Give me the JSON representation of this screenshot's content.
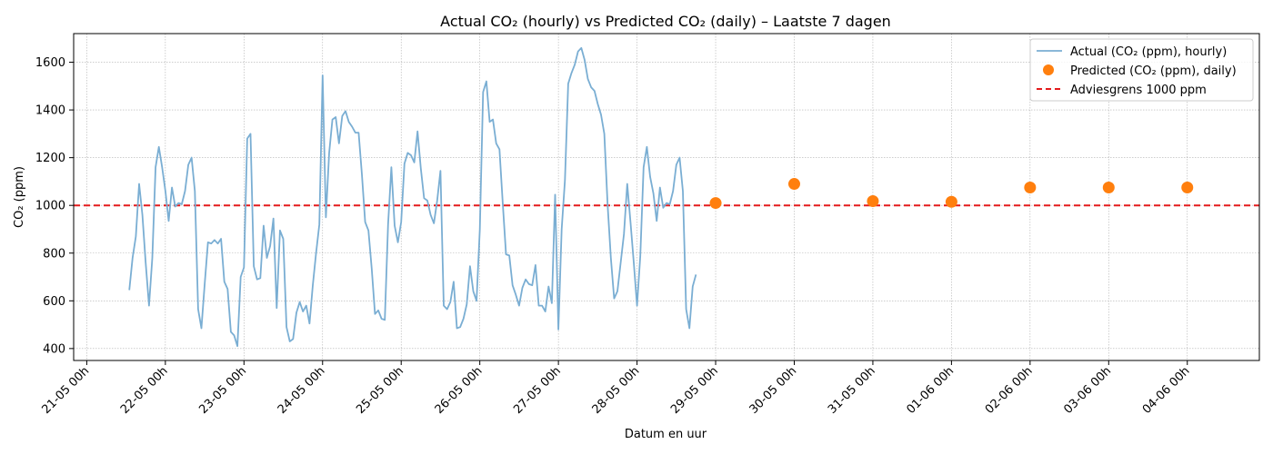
{
  "chart_data": {
    "type": "line",
    "title": "Actual CO₂ (hourly) vs Predicted CO₂ (daily) – Laatste 7 dagen",
    "xlabel": "Datum en uur",
    "ylabel": "CO₂ (ppm)",
    "x_unit": "hours since 21-05 00h",
    "xlim": [
      -4,
      358
    ],
    "ylim": [
      350,
      1720
    ],
    "grid": true,
    "legend_position": "top-right",
    "x_tick_labels": [
      "21-05 00h",
      "22-05 00h",
      "23-05 00h",
      "24-05 00h",
      "25-05 00h",
      "26-05 00h",
      "27-05 00h",
      "28-05 00h",
      "29-05 00h",
      "30-05 00h",
      "31-05 00h",
      "01-06 00h",
      "02-06 00h",
      "03-06 00h",
      "04-06 00h"
    ],
    "y_ticks": [
      400,
      600,
      800,
      1000,
      1200,
      1400,
      1600
    ],
    "series": [
      {
        "name": "Actual (CO₂ (ppm), hourly)",
        "kind": "line",
        "color": "#7aaed3",
        "points": [
          [
            13,
            645
          ],
          [
            14,
            780
          ],
          [
            15,
            870
          ],
          [
            16,
            1090
          ],
          [
            17,
            960
          ],
          [
            18,
            760
          ],
          [
            19,
            580
          ],
          [
            20,
            780
          ],
          [
            21,
            1160
          ],
          [
            22,
            1245
          ],
          [
            23,
            1160
          ],
          [
            24,
            1060
          ],
          [
            25,
            935
          ],
          [
            26,
            1075
          ],
          [
            27,
            995
          ],
          [
            28,
            1010
          ],
          [
            29,
            1005
          ],
          [
            30,
            1060
          ],
          [
            31,
            1170
          ],
          [
            32,
            1200
          ],
          [
            33,
            1060
          ],
          [
            34,
            565
          ],
          [
            35,
            485
          ],
          [
            36,
            670
          ],
          [
            37,
            845
          ],
          [
            38,
            840
          ],
          [
            39,
            855
          ],
          [
            40,
            840
          ],
          [
            41,
            860
          ],
          [
            42,
            680
          ],
          [
            43,
            650
          ],
          [
            44,
            470
          ],
          [
            45,
            455
          ],
          [
            46,
            410
          ],
          [
            47,
            700
          ],
          [
            48,
            740
          ],
          [
            49,
            1280
          ],
          [
            50,
            1300
          ],
          [
            51,
            745
          ],
          [
            52,
            690
          ],
          [
            53,
            695
          ],
          [
            54,
            915
          ],
          [
            55,
            780
          ],
          [
            56,
            830
          ],
          [
            57,
            945
          ],
          [
            58,
            570
          ],
          [
            59,
            895
          ],
          [
            60,
            860
          ],
          [
            61,
            490
          ],
          [
            62,
            430
          ],
          [
            63,
            440
          ],
          [
            64,
            550
          ],
          [
            65,
            595
          ],
          [
            66,
            555
          ],
          [
            67,
            580
          ],
          [
            68,
            505
          ],
          [
            69,
            665
          ],
          [
            70,
            800
          ],
          [
            71,
            920
          ],
          [
            72,
            1545
          ],
          [
            73,
            950
          ],
          [
            74,
            1220
          ],
          [
            75,
            1360
          ],
          [
            76,
            1370
          ],
          [
            77,
            1260
          ],
          [
            78,
            1375
          ],
          [
            79,
            1395
          ],
          [
            80,
            1350
          ],
          [
            81,
            1330
          ],
          [
            82,
            1305
          ],
          [
            83,
            1305
          ],
          [
            84,
            1130
          ],
          [
            85,
            930
          ],
          [
            86,
            895
          ],
          [
            87,
            735
          ],
          [
            88,
            545
          ],
          [
            89,
            560
          ],
          [
            90,
            525
          ],
          [
            91,
            520
          ],
          [
            92,
            920
          ],
          [
            93,
            1160
          ],
          [
            94,
            915
          ],
          [
            95,
            845
          ],
          [
            96,
            930
          ],
          [
            97,
            1175
          ],
          [
            98,
            1220
          ],
          [
            99,
            1210
          ],
          [
            100,
            1180
          ],
          [
            101,
            1310
          ],
          [
            102,
            1155
          ],
          [
            103,
            1030
          ],
          [
            104,
            1020
          ],
          [
            105,
            960
          ],
          [
            106,
            925
          ],
          [
            107,
            1020
          ],
          [
            108,
            1145
          ],
          [
            109,
            580
          ],
          [
            110,
            565
          ],
          [
            111,
            595
          ],
          [
            112,
            680
          ],
          [
            113,
            485
          ],
          [
            114,
            490
          ],
          [
            115,
            525
          ],
          [
            116,
            585
          ],
          [
            117,
            745
          ],
          [
            118,
            640
          ],
          [
            119,
            600
          ],
          [
            120,
            900
          ],
          [
            121,
            1475
          ],
          [
            122,
            1520
          ],
          [
            123,
            1350
          ],
          [
            124,
            1360
          ],
          [
            125,
            1260
          ],
          [
            126,
            1235
          ],
          [
            127,
            1010
          ],
          [
            128,
            795
          ],
          [
            129,
            790
          ],
          [
            130,
            665
          ],
          [
            131,
            625
          ],
          [
            132,
            580
          ],
          [
            133,
            655
          ],
          [
            134,
            690
          ],
          [
            135,
            670
          ],
          [
            136,
            665
          ],
          [
            137,
            750
          ],
          [
            138,
            580
          ],
          [
            139,
            580
          ],
          [
            140,
            555
          ],
          [
            141,
            660
          ],
          [
            142,
            590
          ],
          [
            143,
            1045
          ],
          [
            144,
            480
          ],
          [
            145,
            900
          ],
          [
            146,
            1105
          ],
          [
            147,
            1510
          ],
          [
            148,
            1555
          ],
          [
            149,
            1590
          ],
          [
            150,
            1645
          ],
          [
            151,
            1660
          ],
          [
            152,
            1610
          ],
          [
            153,
            1530
          ],
          [
            154,
            1495
          ],
          [
            155,
            1480
          ],
          [
            156,
            1425
          ],
          [
            157,
            1380
          ],
          [
            158,
            1300
          ],
          [
            159,
            1005
          ],
          [
            160,
            780
          ],
          [
            161,
            610
          ],
          [
            162,
            640
          ],
          [
            163,
            760
          ],
          [
            164,
            880
          ],
          [
            165,
            1090
          ],
          [
            166,
            930
          ],
          [
            167,
            760
          ],
          [
            168,
            580
          ],
          [
            169,
            790
          ],
          [
            170,
            1160
          ],
          [
            171,
            1245
          ],
          [
            172,
            1120
          ],
          [
            173,
            1050
          ],
          [
            174,
            935
          ],
          [
            175,
            1075
          ],
          [
            176,
            990
          ],
          [
            177,
            1010
          ],
          [
            178,
            1005
          ],
          [
            179,
            1060
          ],
          [
            180,
            1170
          ],
          [
            181,
            1200
          ],
          [
            182,
            1060
          ],
          [
            183,
            565
          ],
          [
            184,
            485
          ],
          [
            185,
            660
          ],
          [
            186,
            710
          ]
        ]
      },
      {
        "name": "Predicted (CO₂ (ppm), daily)",
        "kind": "scatter",
        "color": "#ff7f0e",
        "points": [
          [
            192,
            1010
          ],
          [
            216,
            1090
          ],
          [
            240,
            1018
          ],
          [
            264,
            1015
          ],
          [
            288,
            1075
          ],
          [
            312,
            1075
          ],
          [
            336,
            1075
          ]
        ]
      },
      {
        "name": "Adviesgrens 1000 ppm",
        "kind": "hline",
        "color": "#e41a1c",
        "y": 1000
      }
    ]
  }
}
